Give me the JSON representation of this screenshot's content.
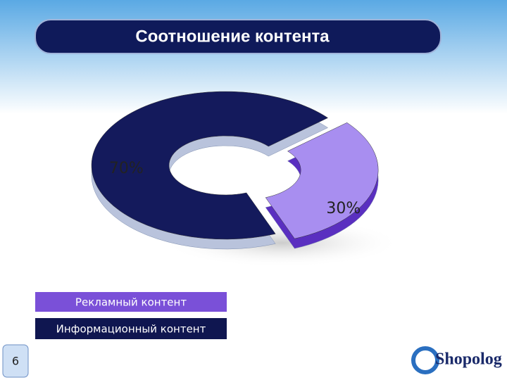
{
  "chart_data": {
    "type": "doughnut",
    "title": "Соотношение контента",
    "categories": [
      "Рекламный контент",
      "Информационный контент"
    ],
    "values": [
      30,
      70
    ],
    "value_labels": [
      "30%",
      "70%"
    ],
    "colors": [
      "#a88ef0",
      "#141a5c"
    ]
  },
  "slide": {
    "page_number": 6,
    "logo": "Shopolog"
  }
}
